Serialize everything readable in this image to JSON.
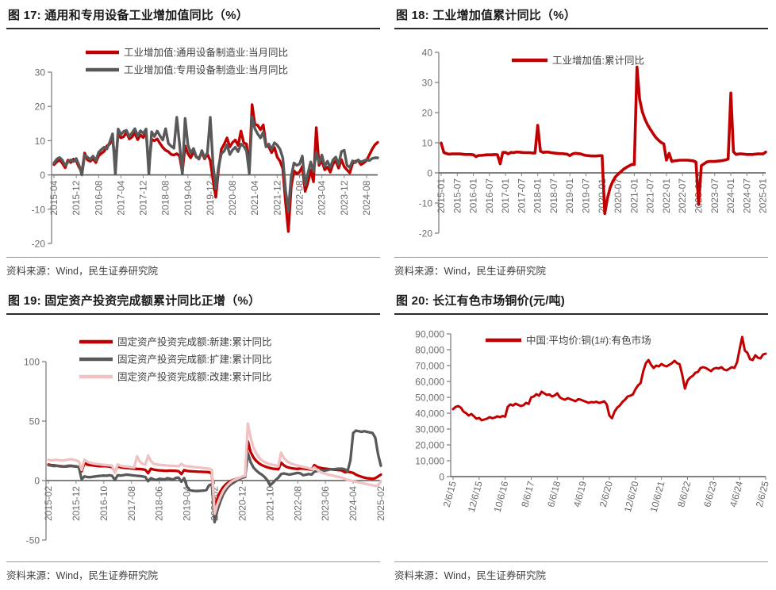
{
  "source_note": "资料来源：Wind，民生证券研究院",
  "colors": {
    "red": "#c00000",
    "dark_gray": "#595959",
    "pink": "#f0c2c2",
    "axis": "#808080",
    "baseline": "#595959",
    "tick_text": "#6b6b6b",
    "title_text": "#1a1a1a"
  },
  "chart_data": [
    {
      "type": "line",
      "title": "图 17:  通用和专用设备工业增加值同比（%）",
      "legend_position": "top-left",
      "grid": false,
      "xlabel": "",
      "ylabel": "",
      "ylim": [
        -20,
        30
      ],
      "yticks": [
        30,
        20,
        10,
        0,
        -10,
        -20
      ],
      "y_thousands": false,
      "x_step": 8,
      "x_labels": [
        "2015-04",
        "2015-12",
        "2016-08",
        "2017-04",
        "2017-12",
        "2018-08",
        "2019-04",
        "2019-12",
        "2020-08",
        "2021-04",
        "2021-12",
        "2022-08",
        "2023-04",
        "2023-12",
        "2024-08"
      ],
      "series": [
        {
          "name": "工业增加值:通用设备制造业:当月同比",
          "color": "#c00000",
          "values": [
            3.0,
            3.8,
            4.4,
            3.4,
            2.1,
            4.3,
            3.6,
            4.6,
            4.1,
            2.2,
            0.9,
            6.4,
            4.4,
            4.0,
            4.7,
            3.6,
            5.6,
            6.3,
            6.9,
            8.5,
            9.0,
            10.5,
            3.2,
            11.9,
            10.8,
            11.2,
            12.4,
            10.5,
            11.1,
            12.2,
            10.3,
            11.7,
            10.9,
            12.5,
            2.5,
            10.4,
            10.0,
            10.5,
            9.2,
            8.0,
            7.2,
            6.8,
            6.0,
            5.8,
            6.2,
            5.5,
            0.8,
            8.5,
            6.2,
            5.0,
            6.8,
            5.2,
            5.0,
            6.5,
            4.7,
            6.1,
            4.2,
            -1.5,
            -6.5,
            1.8,
            7.5,
            9.0,
            10.8,
            8.2,
            9.5,
            10.2,
            8.6,
            12.8,
            9.4,
            9.0,
            2.0,
            20.5,
            14.8,
            14.5,
            13.2,
            14.6,
            8.7,
            8.2,
            6.5,
            8.0,
            5.2,
            4.0,
            1.8,
            -8.0,
            -16.5,
            -3.5,
            1.2,
            0.4,
            0.8,
            2.5,
            -4.8,
            -2.2,
            1.5,
            -2.0,
            13.8,
            2.8,
            4.2,
            1.5,
            2.3,
            0.8,
            3.2,
            4.1,
            2.0,
            4.5,
            2.4,
            1.5,
            0.6,
            3.3,
            4.0,
            4.2,
            3.0,
            3.5,
            4.2,
            5.8,
            7.5,
            8.8,
            9.5
          ]
        },
        {
          "name": "工业增加值:专用设备制造业:当月同比",
          "color": "#595959",
          "values": [
            3.5,
            4.6,
            5.1,
            4.3,
            2.8,
            3.7,
            4.4,
            3.9,
            4.8,
            2.8,
            0.0,
            5.8,
            5.2,
            4.5,
            5.5,
            4.2,
            6.6,
            7.4,
            8.1,
            7.6,
            9.6,
            12.0,
            0.2,
            13.4,
            11.8,
            12.7,
            13.0,
            11.2,
            12.3,
            13.5,
            11.4,
            12.9,
            12.1,
            13.4,
            0.3,
            12.6,
            11.2,
            12.8,
            11.4,
            10.2,
            13.5,
            9.2,
            8.4,
            7.8,
            16.8,
            9.0,
            0.2,
            16.5,
            8.8,
            6.4,
            7.7,
            5.3,
            4.6,
            7.1,
            5.0,
            6.5,
            16.8,
            3.0,
            -4.0,
            2.5,
            6.2,
            7.0,
            8.8,
            6.0,
            7.3,
            8.1,
            6.8,
            9.0,
            8.4,
            7.0,
            0.5,
            17.0,
            13.5,
            12.0,
            10.8,
            12.5,
            8.2,
            9.0,
            7.5,
            9.4,
            8.7,
            7.5,
            5.0,
            -4.5,
            -10.5,
            -0.5,
            3.5,
            2.8,
            3.2,
            5.5,
            -3.0,
            0.5,
            3.8,
            1.0,
            6.5,
            3.5,
            5.8,
            2.5,
            4.0,
            2.2,
            4.4,
            5.2,
            3.1,
            6.8,
            7.2,
            2.8,
            2.2,
            4.1,
            3.6,
            4.4,
            3.8,
            4.1,
            4.5,
            4.2,
            4.8,
            5.0,
            5.0
          ]
        }
      ]
    },
    {
      "type": "line",
      "title": "图 18:  工业增加值累计同比（%）",
      "legend_position": "top-center",
      "grid": false,
      "xlabel": "",
      "ylabel": "",
      "ylim": [
        -20,
        40
      ],
      "yticks": [
        40,
        30,
        20,
        10,
        0,
        -10,
        -20
      ],
      "y_thousands": false,
      "x_step": 6,
      "x_labels": [
        "2015-01",
        "2015-07",
        "2016-01",
        "2016-07",
        "2017-01",
        "2017-07",
        "2018-01",
        "2018-07",
        "2019-01",
        "2019-07",
        "2020-01",
        "2020-07",
        "2021-01",
        "2021-07",
        "2022-01",
        "2022-07",
        "2023-01",
        "2023-07",
        "2024-01",
        "2024-07",
        "2025-01"
      ],
      "series": [
        {
          "name": "工业增加值:累计同比",
          "color": "#c00000",
          "values": [
            9.9,
            6.8,
            6.4,
            6.2,
            6.3,
            6.3,
            6.3,
            6.3,
            6.2,
            6.1,
            6.1,
            6.1,
            6.0,
            5.4,
            5.8,
            5.8,
            5.9,
            6.0,
            6.0,
            6.0,
            6.1,
            6.0,
            3.0,
            6.8,
            6.8,
            6.3,
            6.8,
            6.7,
            6.9,
            6.9,
            6.8,
            6.7,
            6.7,
            6.7,
            6.6,
            6.6,
            15.8,
            7.2,
            6.8,
            6.9,
            6.9,
            6.7,
            6.6,
            6.5,
            6.4,
            6.4,
            6.3,
            6.2,
            5.7,
            6.3,
            6.5,
            6.4,
            6.3,
            6.0,
            5.8,
            5.7,
            5.6,
            5.6,
            5.6,
            5.7,
            5.7,
            -13.5,
            -8.4,
            -4.9,
            -2.8,
            -1.3,
            -0.4,
            0.4,
            1.2,
            1.8,
            2.3,
            2.8,
            2.8,
            35.1,
            24.5,
            20.3,
            17.8,
            15.9,
            14.4,
            13.1,
            11.8,
            10.9,
            10.1,
            9.6,
            4.2,
            6.5,
            3.8,
            4.0,
            4.1,
            4.2,
            4.2,
            4.2,
            4.2,
            4.1,
            4.0,
            3.6,
            -10.5,
            2.4,
            3.0,
            3.6,
            3.8,
            3.8,
            3.8,
            3.9,
            4.0,
            4.1,
            4.3,
            4.6,
            26.5,
            7.0,
            6.1,
            6.3,
            6.3,
            6.2,
            6.1,
            6.1,
            6.1,
            6.2,
            6.3,
            6.3,
            6.3,
            6.9
          ]
        }
      ]
    },
    {
      "type": "line",
      "title": "图 19:  固定资产投资完成额累计同比正增（%）",
      "legend_position": "top-left",
      "grid": false,
      "xlabel": "",
      "ylabel": "",
      "ylim": [
        -50,
        100
      ],
      "yticks": [
        100,
        50,
        0,
        -50
      ],
      "y_thousands": false,
      "x_step": 10,
      "x_labels": [
        "2015-02",
        "2015-12",
        "2016-10",
        "2017-08",
        "2018-06",
        "2019-04",
        "2020-02",
        "2020-12",
        "2021-10",
        "2022-08",
        "2023-06",
        "2024-04",
        "2025-02"
      ],
      "series": [
        {
          "name": "固定资产投资完成额:新建:累计同比",
          "color": "#c00000",
          "values": [
            13.5,
            13.0,
            12.8,
            12.5,
            12.2,
            12.0,
            11.8,
            12.0,
            12.3,
            12.0,
            11.8,
            11.5,
            7.8,
            14.8,
            13.4,
            13.0,
            12.7,
            12.4,
            12.2,
            12.0,
            12.2,
            12.0,
            11.8,
            11.2,
            7.5,
            12.0,
            11.2,
            10.8,
            10.6,
            10.4,
            10.2,
            10.0,
            9.8,
            9.7,
            9.5,
            9.0,
            6.2,
            10.0,
            9.2,
            8.8,
            8.6,
            8.5,
            8.3,
            8.2,
            8.4,
            8.3,
            8.2,
            7.8,
            5.5,
            8.8,
            8.2,
            7.9,
            7.7,
            7.6,
            7.5,
            7.4,
            7.3,
            7.2,
            7.0,
            6.0,
            -24.5,
            -15.0,
            -9.5,
            -5.8,
            -3.2,
            -1.5,
            -0.2,
            0.8,
            1.6,
            2.3,
            2.9,
            3.0,
            33.0,
            24.0,
            19.5,
            16.5,
            14.5,
            13.0,
            12.0,
            11.2,
            10.5,
            10.0,
            9.8,
            9.5,
            15.0,
            12.8,
            11.5,
            10.8,
            10.3,
            10.0,
            9.8,
            10.2,
            10.0,
            9.8,
            9.5,
            9.0,
            13.0,
            11.5,
            10.8,
            10.3,
            10.0,
            9.7,
            9.4,
            9.2,
            9.0,
            8.8,
            8.5,
            7.0,
            7.5,
            7.0,
            6.5,
            5.0,
            4.0,
            3.2,
            2.5,
            2.0,
            1.8,
            1.5,
            2.0,
            3.5,
            5.0
          ]
        },
        {
          "name": "固定资产投资完成额:扩建:累计同比",
          "color": "#595959",
          "values": [
            13.0,
            12.6,
            12.2,
            12.4,
            12.0,
            11.8,
            12.0,
            12.4,
            12.6,
            12.2,
            12.0,
            11.0,
            1.0,
            3.5,
            3.0,
            2.8,
            3.2,
            3.5,
            3.8,
            4.0,
            4.2,
            4.0,
            4.5,
            4.0,
            0.5,
            4.5,
            4.2,
            4.5,
            5.0,
            4.8,
            4.5,
            4.3,
            4.0,
            3.8,
            3.5,
            3.0,
            -0.5,
            2.0,
            1.0,
            0.5,
            1.5,
            1.2,
            1.0,
            2.0,
            1.5,
            0.8,
            2.2,
            2.5,
            -1.0,
            2.0,
            -5.0,
            -8.0,
            -8.5,
            -8.7,
            -8.8,
            -8.6,
            -8.4,
            -8.0,
            -4.0,
            -3.0,
            -35.0,
            -25.0,
            -18.0,
            -12.0,
            -8.0,
            -5.0,
            -3.0,
            -1.5,
            0.0,
            1.5,
            2.5,
            3.0,
            23.0,
            15.5,
            11.0,
            8.5,
            6.5,
            5.0,
            3.0,
            0.5,
            -4.0,
            -2.0,
            0.5,
            2.5,
            5.5,
            6.0,
            5.5,
            5.0,
            5.5,
            6.0,
            6.5,
            6.0,
            4.5,
            5.0,
            5.5,
            5.0,
            7.5,
            8.0,
            8.5,
            8.0,
            8.5,
            9.0,
            9.5,
            9.5,
            9.8,
            10.0,
            10.0,
            9.5,
            8.0,
            17.0,
            40.0,
            42.0,
            41.5,
            41.0,
            41.5,
            41.0,
            40.5,
            40.0,
            36.0,
            22.0,
            12.5
          ]
        },
        {
          "name": "固定资产投资完成额:改建:累计同比",
          "color": "#f0c2c2",
          "values": [
            17.5,
            17.0,
            17.2,
            17.5,
            17.0,
            16.8,
            17.2,
            17.6,
            18.0,
            17.5,
            17.0,
            16.0,
            9.0,
            17.5,
            16.0,
            15.0,
            14.5,
            14.0,
            13.8,
            13.5,
            13.2,
            13.0,
            12.8,
            12.5,
            6.5,
            13.5,
            12.5,
            12.0,
            11.8,
            11.5,
            11.3,
            11.0,
            20.5,
            16.0,
            14.0,
            13.5,
            21.0,
            16.5,
            14.0,
            13.5,
            13.2,
            13.0,
            12.8,
            12.6,
            12.5,
            12.4,
            12.2,
            12.0,
            14.0,
            12.5,
            12.0,
            11.8,
            11.5,
            11.3,
            11.0,
            10.8,
            10.5,
            10.2,
            10.0,
            9.0,
            -28.0,
            -20.0,
            -14.0,
            -9.0,
            -5.5,
            -3.0,
            -1.0,
            0.5,
            1.5,
            2.5,
            3.5,
            4.0,
            48.0,
            36.0,
            28.0,
            23.0,
            19.5,
            17.0,
            15.5,
            14.5,
            13.8,
            13.2,
            12.8,
            12.0,
            23.5,
            19.0,
            16.5,
            15.0,
            14.0,
            13.2,
            12.6,
            12.0,
            11.5,
            11.0,
            10.5,
            9.5,
            11.0,
            9.0,
            7.5,
            6.5,
            5.8,
            5.0,
            4.5,
            4.0,
            3.5,
            3.0,
            2.5,
            1.5,
            0.5,
            0.0,
            -0.5,
            -1.0,
            -1.5,
            -2.0,
            -2.5,
            -3.0,
            -3.5,
            -4.0,
            -4.5,
            -4.0,
            -0.5
          ]
        }
      ]
    },
    {
      "type": "line",
      "title": "图 20:  长江有色市场铜价(元/吨)",
      "legend_position": "top-center",
      "grid": false,
      "xlabel": "",
      "ylabel": "",
      "ylim": [
        0,
        90000
      ],
      "yticks": [
        90000,
        80000,
        70000,
        60000,
        50000,
        40000,
        30000,
        20000,
        10000,
        0
      ],
      "y_thousands": true,
      "x_step": 10,
      "x_labels": [
        "2/6/15",
        "12/6/15",
        "10/6/16",
        "8/6/17",
        "6/6/18",
        "4/6/19",
        "2/6/20",
        "12/6/20",
        "10/6/21",
        "8/6/22",
        "6/6/23",
        "4/6/24",
        "2/6/25"
      ],
      "series": [
        {
          "name": "中国:平均价:铜(1#):有色市场",
          "color": "#c00000",
          "values": [
            42500,
            44000,
            44500,
            43500,
            41000,
            40000,
            38500,
            39500,
            38000,
            36500,
            37000,
            35500,
            36000,
            36500,
            37500,
            36800,
            37200,
            38000,
            37500,
            38200,
            37800,
            44000,
            45500,
            44800,
            46000,
            45200,
            44500,
            45000,
            46500,
            45800,
            50000,
            50500,
            52000,
            51000,
            53500,
            52500,
            51500,
            51800,
            50500,
            51200,
            52500,
            50000,
            49000,
            48500,
            49500,
            48800,
            48200,
            47500,
            48800,
            48500,
            47800,
            47200,
            46500,
            47000,
            46800,
            47200,
            46500,
            46800,
            47500,
            45500,
            38500,
            36800,
            41000,
            43500,
            44800,
            47000,
            48500,
            50500,
            51000,
            51800,
            55000,
            57500,
            59000,
            66500,
            71500,
            73500,
            70500,
            68500,
            70000,
            69500,
            71000,
            70000,
            69500,
            70500,
            71500,
            73000,
            71500,
            70800,
            64000,
            55500,
            60500,
            62500,
            63500,
            65500,
            66000,
            68500,
            69000,
            68500,
            67500,
            66500,
            68000,
            68500,
            68200,
            69000,
            67500,
            67000,
            68000,
            69000,
            68500,
            72000,
            80500,
            88000,
            79500,
            78000,
            74000,
            73500,
            76500,
            75000,
            74500,
            77000,
            77500
          ]
        }
      ]
    }
  ]
}
